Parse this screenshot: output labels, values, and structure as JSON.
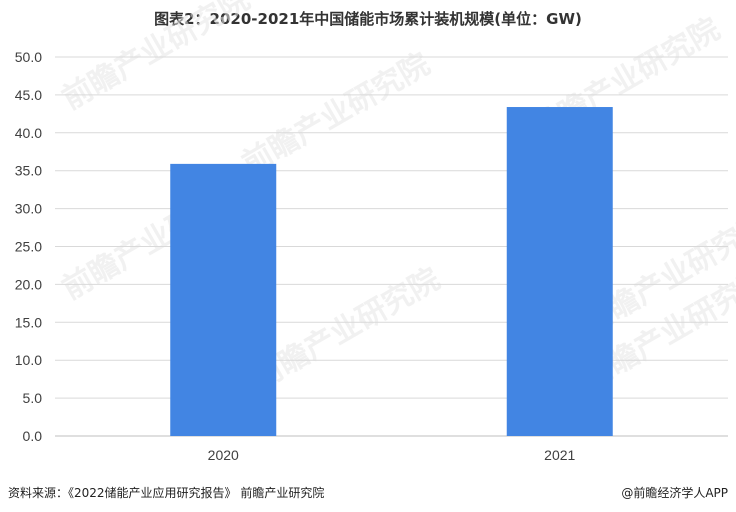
{
  "title": "图表2：2020-2021年中国储能市场累计装机规模(单位：GW)",
  "chart_data": {
    "type": "bar",
    "categories": [
      "2020",
      "2021"
    ],
    "series": [
      {
        "values": [
          35.9,
          43.4
        ]
      }
    ],
    "ylim": [
      0,
      50
    ],
    "yticks": [
      "0.0",
      "5.0",
      "10.0",
      "15.0",
      "20.0",
      "25.0",
      "30.0",
      "35.0",
      "40.0",
      "45.0",
      "50.0"
    ],
    "ytick_values": [
      0,
      5,
      10,
      15,
      20,
      25,
      30,
      35,
      40,
      45,
      50
    ],
    "grid": true,
    "legend": "none",
    "bar_color": "#4285E3"
  },
  "footer": {
    "source": "资料来源：《2022储能产业应用研究报告》 前瞻产业研究院",
    "brand": "@前瞻经济学人APP"
  },
  "watermark": {
    "text": "前瞻产业研究院"
  }
}
